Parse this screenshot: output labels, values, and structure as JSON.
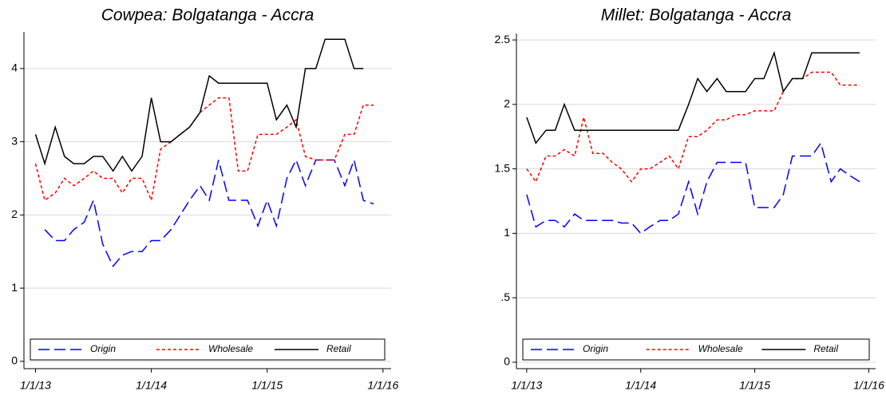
{
  "chart_data": [
    {
      "type": "line",
      "title": "Cowpea: Bolgatanga - Accra",
      "x": [
        2013.0,
        2013.08,
        2013.17,
        2013.25,
        2013.33,
        2013.42,
        2013.5,
        2013.58,
        2013.67,
        2013.75,
        2013.83,
        2013.92,
        2014.0,
        2014.08,
        2014.17,
        2014.25,
        2014.33,
        2014.42,
        2014.5,
        2014.58,
        2014.67,
        2014.75,
        2014.83,
        2014.92,
        2015.0,
        2015.08,
        2015.17,
        2015.25,
        2015.33,
        2015.42,
        2015.5,
        2015.58,
        2015.67,
        2015.75,
        2015.83,
        2015.92
      ],
      "series": [
        {
          "name": "Origin",
          "color": "#0000ff",
          "dash": "long",
          "values": [
            null,
            1.8,
            1.65,
            1.65,
            1.8,
            1.9,
            2.2,
            1.6,
            1.3,
            1.45,
            1.5,
            1.5,
            1.65,
            1.65,
            1.8,
            2.0,
            2.2,
            2.4,
            2.2,
            2.75,
            2.2,
            2.2,
            2.2,
            1.85,
            2.2,
            1.85,
            2.5,
            2.75,
            2.4,
            2.75,
            2.75,
            2.75,
            2.4,
            2.75,
            2.2,
            2.15
          ]
        },
        {
          "name": "Wholesale",
          "color": "#ff0000",
          "dash": "short",
          "values": [
            2.7,
            2.2,
            2.3,
            2.5,
            2.4,
            2.5,
            2.6,
            2.5,
            2.5,
            2.3,
            2.5,
            2.5,
            2.2,
            2.9,
            3.0,
            3.1,
            3.2,
            3.4,
            3.5,
            3.6,
            3.6,
            2.6,
            2.6,
            3.1,
            3.1,
            3.1,
            3.2,
            3.3,
            2.8,
            2.75,
            2.75,
            2.75,
            3.1,
            3.1,
            3.5,
            3.5
          ]
        },
        {
          "name": "Retail",
          "color": "#000000",
          "dash": "solid",
          "values": [
            3.1,
            2.7,
            3.2,
            2.8,
            2.7,
            2.7,
            2.8,
            2.8,
            2.6,
            2.8,
            2.6,
            2.8,
            3.6,
            3.0,
            3.0,
            3.1,
            3.2,
            3.4,
            3.9,
            3.8,
            3.8,
            3.8,
            3.8,
            3.8,
            3.8,
            3.3,
            3.5,
            3.2,
            4.0,
            4.0,
            4.4,
            4.4,
            4.4,
            4.0,
            4.0,
            null
          ]
        }
      ],
      "xlim": [
        2012.9,
        2016.07
      ],
      "xticks": [
        {
          "value": 2013,
          "label": "1/1/13"
        },
        {
          "value": 2014,
          "label": "1/1/14"
        },
        {
          "value": 2015,
          "label": "1/1/15"
        },
        {
          "value": 2016,
          "label": "1/1/16"
        }
      ],
      "ylim": [
        -0.1,
        4.5
      ],
      "yticks": [
        0,
        1,
        2,
        3,
        4
      ],
      "grid": true,
      "legend": "bottom"
    },
    {
      "type": "line",
      "title": "Millet: Bolgatanga - Accra",
      "x": [
        2013.0,
        2013.08,
        2013.17,
        2013.25,
        2013.33,
        2013.42,
        2013.5,
        2013.58,
        2013.67,
        2013.75,
        2013.83,
        2013.92,
        2014.0,
        2014.08,
        2014.17,
        2014.25,
        2014.33,
        2014.42,
        2014.5,
        2014.58,
        2014.67,
        2014.75,
        2014.83,
        2014.92,
        2015.0,
        2015.08,
        2015.17,
        2015.25,
        2015.33,
        2015.42,
        2015.5,
        2015.58,
        2015.67,
        2015.75,
        2015.83,
        2015.92
      ],
      "series": [
        {
          "name": "Origin",
          "color": "#0000ff",
          "dash": "long",
          "values": [
            1.3,
            1.05,
            1.1,
            1.1,
            1.05,
            1.15,
            1.1,
            1.1,
            1.1,
            1.1,
            1.08,
            1.08,
            1.0,
            1.05,
            1.1,
            1.1,
            1.15,
            1.4,
            1.15,
            1.4,
            1.55,
            1.55,
            1.55,
            1.55,
            1.2,
            1.2,
            1.2,
            1.3,
            1.6,
            1.6,
            1.6,
            1.7,
            1.4,
            1.5,
            1.45,
            1.4
          ]
        },
        {
          "name": "Wholesale",
          "color": "#ff0000",
          "dash": "short",
          "values": [
            1.5,
            1.4,
            1.6,
            1.6,
            1.65,
            1.6,
            1.9,
            1.62,
            1.62,
            1.55,
            1.5,
            1.4,
            1.5,
            1.5,
            1.55,
            1.6,
            1.5,
            1.75,
            1.75,
            1.8,
            1.88,
            1.88,
            1.92,
            1.92,
            1.95,
            1.95,
            1.95,
            2.1,
            2.2,
            2.2,
            2.25,
            2.25,
            2.25,
            2.15,
            2.15,
            2.15
          ]
        },
        {
          "name": "Retail",
          "color": "#000000",
          "dash": "solid",
          "values": [
            1.9,
            1.7,
            1.8,
            1.8,
            2.0,
            1.8,
            1.8,
            1.8,
            1.8,
            1.8,
            1.8,
            1.8,
            1.8,
            1.8,
            1.8,
            1.8,
            1.8,
            2.0,
            2.2,
            2.1,
            2.2,
            2.1,
            2.1,
            2.1,
            2.2,
            2.2,
            2.4,
            2.1,
            2.2,
            2.2,
            2.4,
            2.4,
            2.4,
            2.4,
            2.4,
            2.4
          ]
        }
      ],
      "xlim": [
        2012.91,
        2016.06
      ],
      "xticks": [
        {
          "value": 2013,
          "label": "1/1/13"
        },
        {
          "value": 2014,
          "label": "1/1/14"
        },
        {
          "value": 2015,
          "label": "1/1/15"
        },
        {
          "value": 2016,
          "label": "1/1/16"
        }
      ],
      "ylim": [
        -0.05,
        2.55
      ],
      "yticks": [
        0,
        {
          "value": 0.5,
          "label": ".5"
        },
        1,
        1.5,
        2,
        2.5
      ],
      "grid": true,
      "legend": "bottom"
    }
  ]
}
